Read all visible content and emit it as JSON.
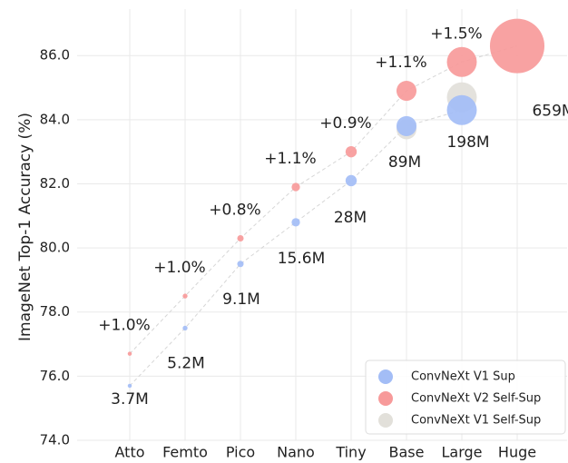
{
  "chart_data": {
    "type": "bubble",
    "y_label": "ImageNet Top-1 Accuracy (%)",
    "categories": [
      "Atto",
      "Femto",
      "Pico",
      "Nano",
      "Tiny",
      "Base",
      "Large",
      "Huge"
    ],
    "sizes": [
      3.7,
      5.2,
      9.1,
      15.6,
      28,
      89,
      198,
      659
    ],
    "size_labels": [
      "3.7M",
      "5.2M",
      "9.1M",
      "15.6M",
      "28M",
      "89M",
      "198M",
      "659M"
    ],
    "gain_labels": [
      "+1.0%",
      "+1.0%",
      "+0.8%",
      "+1.1%",
      "+0.9%",
      "+1.1%",
      "+1.5%",
      null
    ],
    "series": [
      {
        "name": "ConvNeXt V1 Sup",
        "color": "#a3bdf6",
        "values": [
          75.7,
          77.5,
          79.5,
          80.8,
          82.1,
          83.8,
          84.3,
          null
        ],
        "connected": true
      },
      {
        "name": "ConvNeXt V2 Self-Sup",
        "color": "#f79a9a",
        "values": [
          76.7,
          78.5,
          80.3,
          81.9,
          83.0,
          84.9,
          85.8,
          86.3
        ],
        "connected": true
      },
      {
        "name": "ConvNeXt V1 Self-Sup",
        "color": "#e2e0da",
        "values": [
          null,
          null,
          null,
          null,
          null,
          83.7,
          84.7,
          null
        ],
        "connected": false
      }
    ],
    "ylim": [
      74,
      87.45
    ],
    "yticks": [
      {
        "value": 74,
        "label": "74.0"
      },
      {
        "value": 76,
        "label": "76.0"
      },
      {
        "value": 78,
        "label": "78.0"
      },
      {
        "value": 80,
        "label": "80.0"
      },
      {
        "value": 82,
        "label": "82.0"
      },
      {
        "value": 84,
        "label": "84.0"
      },
      {
        "value": 86,
        "label": "86.0"
      }
    ],
    "grid": true,
    "legend": "lower right"
  }
}
